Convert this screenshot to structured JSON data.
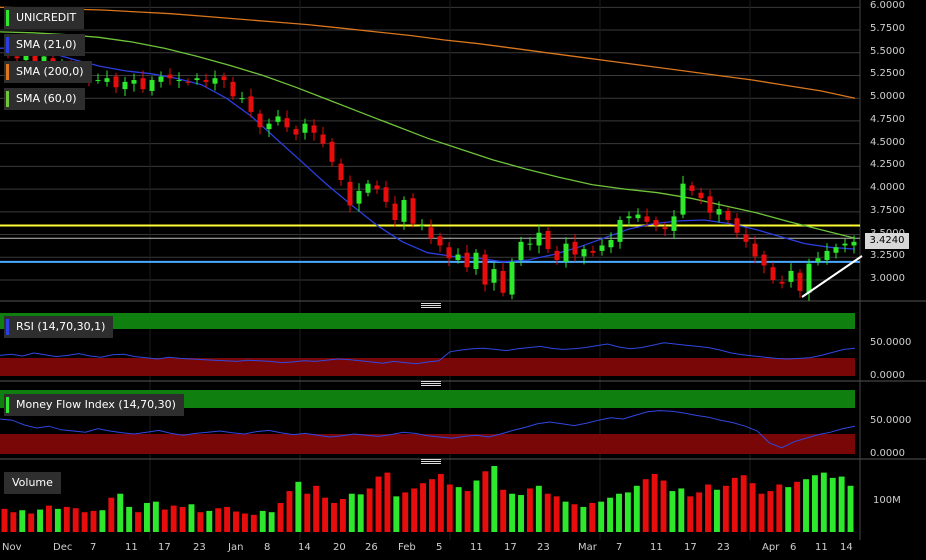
{
  "colors": {
    "up": "#2ee82e",
    "down": "#e80d0d",
    "sma21": "#2b3ee0",
    "sma200": "#d9761e",
    "sma60": "#6fc43b",
    "yellow_line": "#ffff33",
    "blue_line": "#4aa8ff",
    "trendline": "#ffffff",
    "overbought_zone": "#0f7f0f",
    "oversold_zone": "#7a0707",
    "indicator_line": "#3047e0",
    "legend_bg": "#2e2e2e"
  },
  "legend": {
    "symbol": "UNICREDIT",
    "sma21": "SMA (21,0)",
    "sma200": "SMA (200,0)",
    "sma60": "SMA (60,0)",
    "rsi": "RSI (14,70,30,1)",
    "mfi": "Money Flow Index (14,70,30)",
    "volume": "Volume"
  },
  "price_axis": [
    "6.0000",
    "5.7500",
    "5.5000",
    "5.2500",
    "5.0000",
    "4.7500",
    "4.5000",
    "4.2500",
    "4.0000",
    "3.7500",
    "3.5000",
    "3.2500",
    "3.0000"
  ],
  "last_price": "3.4240",
  "rsi_axis": [
    "50.0000",
    "0.0000"
  ],
  "mfi_axis": [
    "50.0000",
    "0.0000"
  ],
  "volume_axis": [
    "100M"
  ],
  "x_axis": [
    "Nov",
    "Dec",
    "7",
    "11",
    "17",
    "23",
    "Jan",
    "8",
    "14",
    "20",
    "26",
    "Feb",
    "5",
    "11",
    "17",
    "23",
    "Mar",
    "7",
    "11",
    "17",
    "23",
    "Apr",
    "6",
    "11",
    "14"
  ],
  "chart_data": {
    "type": "candlestick",
    "title": "UNICREDIT",
    "ylim": [
      2.78,
      6.02
    ],
    "levels": [
      3.6,
      3.46,
      3.2
    ],
    "closes": [
      5.48,
      5.44,
      5.52,
      5.38,
      5.46,
      5.3,
      5.36,
      5.34,
      5.28,
      5.22,
      5.2,
      5.22,
      5.12,
      5.18,
      5.2,
      5.1,
      5.2,
      5.24,
      5.22,
      5.2,
      5.18,
      5.22,
      5.18,
      5.22,
      5.2,
      5.02,
      5.0,
      4.85,
      4.68,
      4.72,
      4.8,
      4.68,
      4.6,
      4.72,
      4.62,
      4.5,
      4.3,
      4.1,
      3.82,
      3.98,
      4.06,
      4.0,
      3.86,
      3.66,
      3.88,
      3.62,
      3.6,
      3.46,
      3.38,
      3.24,
      3.28,
      3.14,
      3.3,
      2.95,
      3.12,
      2.86,
      3.2,
      3.42,
      3.4,
      3.52,
      3.34,
      3.22,
      3.4,
      3.28,
      3.34,
      3.3,
      3.38,
      3.44,
      3.66,
      3.7,
      3.72,
      3.64,
      3.6,
      3.56,
      3.7,
      4.06,
      3.98,
      3.9,
      3.74,
      3.78,
      3.66,
      3.52,
      3.42,
      3.26,
      3.16,
      3.0,
      2.96,
      3.1,
      2.88,
      3.18,
      3.24,
      3.32,
      3.36,
      3.4,
      3.42
    ]
  },
  "rsi_data": [
    36,
    38,
    35,
    40,
    37,
    34,
    36,
    39,
    35,
    33,
    37,
    38,
    34,
    32,
    30,
    33,
    31,
    30,
    29,
    28,
    27,
    26,
    28,
    27,
    26,
    24,
    25,
    27,
    26,
    28,
    30,
    29,
    27,
    25,
    23,
    26,
    24,
    22,
    25,
    27,
    42,
    45,
    47,
    48,
    46,
    44,
    47,
    49,
    51,
    48,
    46,
    47,
    49,
    52,
    55,
    50,
    47,
    49,
    53,
    57,
    55,
    53,
    51,
    49,
    45,
    40,
    37,
    35,
    33,
    31,
    30,
    31,
    32,
    36,
    41,
    46,
    48
  ],
  "mfi_data": [
    60,
    58,
    50,
    45,
    48,
    42,
    40,
    38,
    44,
    40,
    37,
    35,
    38,
    41,
    36,
    33,
    36,
    38,
    40,
    37,
    35,
    39,
    41,
    37,
    34,
    36,
    33,
    30,
    32,
    35,
    33,
    31,
    34,
    38,
    36,
    32,
    30,
    28,
    31,
    33,
    30,
    35,
    41,
    46,
    52,
    55,
    52,
    49,
    53,
    58,
    62,
    60,
    66,
    72,
    74,
    73,
    70,
    66,
    63,
    58,
    54,
    48,
    40,
    20,
    12,
    22,
    28,
    34,
    38,
    44,
    48
  ],
  "volume_data": [
    35,
    30,
    33,
    28,
    34,
    40,
    35,
    38,
    36,
    30,
    32,
    33,
    52,
    58,
    38,
    30,
    44,
    46,
    34,
    40,
    38,
    42,
    30,
    32,
    36,
    38,
    31,
    28,
    26,
    32,
    30,
    44,
    62,
    76,
    58,
    70,
    52,
    44,
    50,
    58,
    57,
    66,
    84,
    90,
    54,
    60,
    66,
    74,
    80,
    88,
    72,
    68,
    62,
    78,
    92,
    100,
    64,
    58,
    56,
    66,
    70,
    58,
    54,
    46,
    42,
    38,
    44,
    46,
    52,
    58,
    60,
    70,
    80,
    88,
    78,
    62,
    66,
    54,
    60,
    72,
    64,
    70,
    82,
    86,
    74,
    58,
    62,
    72,
    68,
    76,
    80,
    86,
    90,
    82,
    84,
    70
  ]
}
